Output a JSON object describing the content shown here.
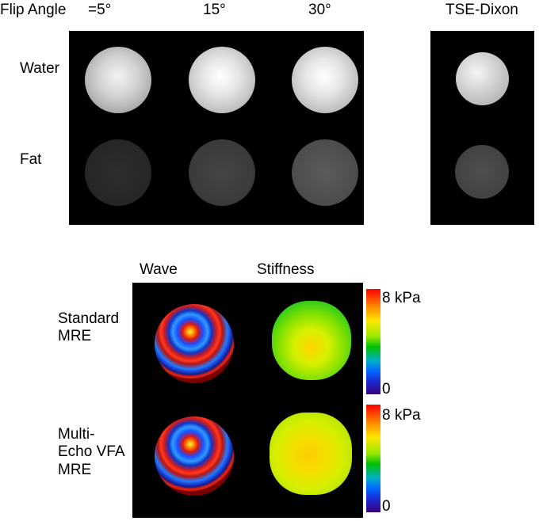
{
  "header": {
    "flip_angle_label": "Flip Angle",
    "angle_1": "=5°",
    "angle_2": "15°",
    "angle_3": "30°",
    "tse_label": "TSE-Dixon"
  },
  "rows": {
    "water": "Water",
    "fat": "Fat"
  },
  "mre": {
    "col_wave": "Wave",
    "col_stiffness": "Stiffness",
    "row_standard_1": "Standard",
    "row_standard_2": "MRE",
    "row_multi_1": "Multi-",
    "row_multi_2": "Echo VFA",
    "row_multi_3": "MRE",
    "colorbar_max": "8 kPa",
    "colorbar_min": "0"
  }
}
